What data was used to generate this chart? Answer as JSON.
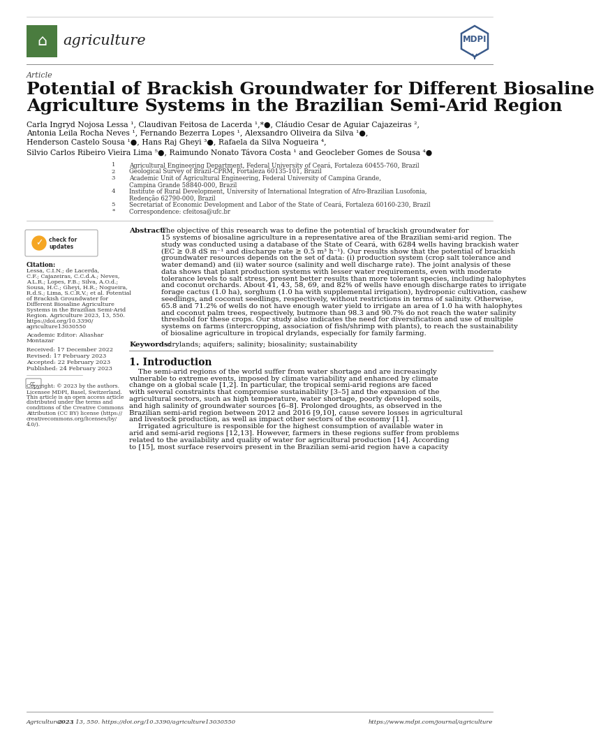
{
  "bg_color": "#ffffff",
  "journal_name": "agriculture",
  "journal_logo_bg": "#3d6b35",
  "article_type": "Article",
  "title_line1": "Potential of Brackish Groundwater for Different Biosaline",
  "title_line2": "Agriculture Systems in the Brazilian Semi-Arid Region",
  "authors_line1": "Carla Ingryd Nojosa Lessa ¹, Claudivan Feitosa de Lacerda ¹,*●, Cláudio Cesar de Aguiar Cajazeiras ²,",
  "authors_line2": "Antonia Leila Rocha Neves ¹, Fernando Bezerra Lopes ¹, Alexsandro Oliveira da Silva ¹●,",
  "authors_line3": "Henderson Castelo Sousa ¹●, Hans Raj Gheyi ³●, Rafaela da Silva Nogueira ⁴,",
  "authors_line4": "Silvio Carlos Ribeiro Vieira Lima ⁵●, Raimundo Nonato Távora Costa ¹ and Geocleber Gomes de Sousa ⁴●",
  "affiliations": [
    {
      "num": "1",
      "text": "Agricultural Engineering Department, Federal University of Ceará, Fortaleza 60455-760, Brazil"
    },
    {
      "num": "2",
      "text": "Geological Survey of Brazil-CPRM, Fortaleza 60135-101, Brazil"
    },
    {
      "num": "3",
      "text": "Academic Unit of Agricultural Engineering, Federal University of Campina Grande,\nCampina Grande 58840-000, Brazil"
    },
    {
      "num": "4",
      "text": "Institute of Rural Development, University of International Integration of Afro-Brazilian Lusofonia,\nRedenção 62790-000, Brazil"
    },
    {
      "num": "5",
      "text": "Secretariat of Economic Development and Labor of the State of Ceará, Fortaleza 60160-230, Brazil"
    },
    {
      "num": "*",
      "text": "Correspondence: cfeitosa@ufc.br"
    }
  ],
  "abstract_label": "Abstract:",
  "abstract_lines": [
    "The objective of this research was to define the potential of brackish groundwater for",
    "15 systems of biosaline agriculture in a representative area of the Brazilian semi-arid region. The",
    "study was conducted using a database of the State of Ceará, with 6284 wells having brackish water",
    "(EC ≥ 0.8 dS m⁻¹ and discharge rate ≥ 0.5 m³ h⁻¹). Our results show that the potential of brackish",
    "groundwater resources depends on the set of data: (i) production system (crop salt tolerance and",
    "water demand) and (ii) water source (salinity and well discharge rate). The joint analysis of these",
    "data shows that plant production systems with lesser water requirements, even with moderate",
    "tolerance levels to salt stress, present better results than more tolerant species, including halophytes",
    "and coconut orchards. About 41, 43, 58, 69, and 82% of wells have enough discharge rates to irrigate",
    "forage cactus (1.0 ha), sorghum (1.0 ha with supplemental irrigation), hydroponic cultivation, cashew",
    "seedlings, and coconut seedlings, respectively, without restrictions in terms of salinity. Otherwise,",
    "65.8 and 71.2% of wells do not have enough water yield to irrigate an area of 1.0 ha with halophytes",
    "and coconut palm trees, respectively, butmore than 98.3 and 90.7% do not reach the water salinity",
    "threshold for these crops. Our study also indicates the need for diversification and use of multiple",
    "systems on farms (intercropping, association of fish/shrimp with plants), to reach the sustainability",
    "of biosaline agriculture in tropical drylands, especially for family farming."
  ],
  "keywords_label": "Keywords:",
  "keywords": "drylands; aquifers; salinity; biosalinity; sustainability",
  "section_title": "1. Introduction",
  "intro_lines": [
    "    The semi-arid regions of the world suffer from water shortage and are increasingly",
    "vulnerable to extreme events, imposed by climate variability and enhanced by climate",
    "change on a global scale [1,2]. In particular, the tropical semi-arid regions are faced",
    "with several constraints that compromise sustainability [3–5] and the expansion of the",
    "agricultural sectors, such as high temperature, water shortage, poorly developed soils,",
    "and high salinity of groundwater sources [6–8]. Prolonged droughts, as observed in the",
    "Brazilian semi-arid region between 2012 and 2016 [9,10], cause severe losses in agricultural",
    "and livestock production, as well as impact other sectors of the economy [11].",
    "    Irrigated agriculture is responsible for the highest consumption of available water in",
    "arid and semi-arid regions [12,13]. However, farmers in these regions suffer from problems",
    "related to the availability and quality of water for agricultural production [14]. According",
    "to [15], most surface reservoirs present in the Brazilian semi-arid region have a capacity"
  ],
  "cite_lines": [
    "Lessa, C.I.N.; de Lacerda,",
    "C.F.; Cajazeiras, C.C.d.A.; Neves,",
    "A.L.R.; Lopes, F.B.; Silva, A.O.d.;",
    "Sousa, H.C.; Gheyi, H.R.; Nogueira,",
    "R.d.S.; Lima, S.C.R.V.; et al. Potential",
    "of Brackish Groundwater for",
    "Different Biosaline Agriculture",
    "Systems in the Brazilian Semi-Arid",
    "Region. Agriculture 2023, 13, 550.",
    "https://doi.org/10.3390/",
    "agriculture13030550"
  ],
  "editor_lines": [
    "Academic Editor: Aliashar",
    "Montazar"
  ],
  "dates": [
    "Received: 17 December 2022",
    "Revised: 17 February 2023",
    "Accepted: 22 February 2023",
    "Published: 24 February 2023"
  ],
  "cc_lines": [
    "Copyright: © 2023 by the authors.",
    "Licensee MDPI, Basel, Switzerland.",
    "This article is an open access article",
    "distributed under the terms and",
    "conditions of the Creative Commons",
    "Attribution (CC BY) license (https://",
    "creativecommons.org/licenses/by/",
    "4.0/)."
  ],
  "footer_left": "Agriculture ",
  "footer_left_bold": "2023",
  "footer_left2": ", 13, 550. https://doi.org/10.3390/agriculture13030550",
  "footer_right": "https://www.mdpi.com/journal/agriculture",
  "mdpi_color": "#3a5a8a",
  "green_logo": "#4a7c3f"
}
